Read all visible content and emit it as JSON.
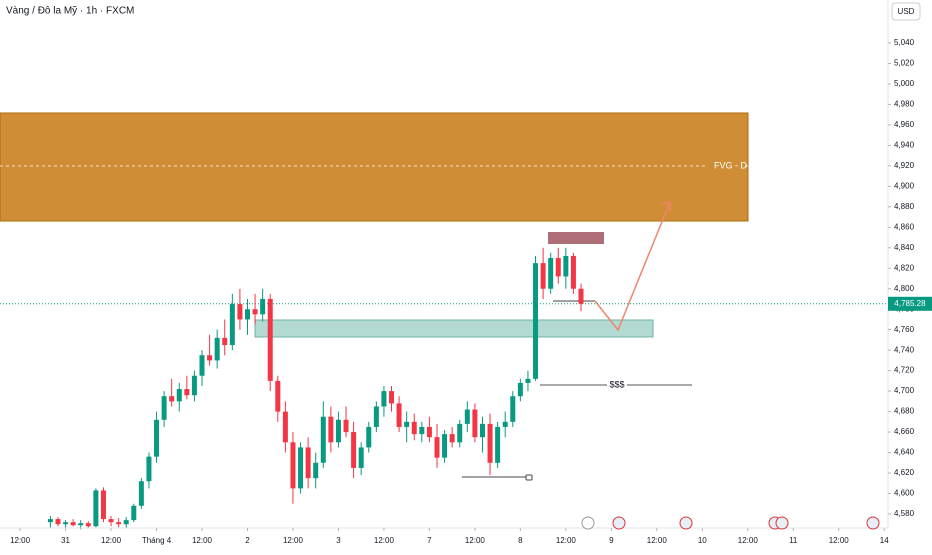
{
  "chart_data": {
    "type": "candlestick",
    "title": "Vàng / Đô la Mỹ · 1h · FXCM",
    "currency": "USD",
    "up_color": "#089981",
    "down_color": "#f23645",
    "ylim": [
      4566.3,
      5082
    ],
    "xlim": [
      -5.3,
      229
    ],
    "yticks": [
      {
        "value": 4580,
        "label": "4,580"
      },
      {
        "value": 4600,
        "label": "4,600"
      },
      {
        "value": 4620,
        "label": "4,620"
      },
      {
        "value": 4640,
        "label": "4,640"
      },
      {
        "value": 4660,
        "label": "4,660"
      },
      {
        "value": 4680,
        "label": "4,680"
      },
      {
        "value": 4700,
        "label": "4,700"
      },
      {
        "value": 4720,
        "label": "4,720"
      },
      {
        "value": 4740,
        "label": "4,740"
      },
      {
        "value": 4760,
        "label": "4,760"
      },
      {
        "value": 4780,
        "label": "4,780"
      },
      {
        "value": 4800,
        "label": "4,800"
      },
      {
        "value": 4820,
        "label": "4,820"
      },
      {
        "value": 4840,
        "label": "4,840"
      },
      {
        "value": 4860,
        "label": "4,860"
      },
      {
        "value": 4880,
        "label": "4,880"
      },
      {
        "value": 4900,
        "label": "4,900"
      },
      {
        "value": 4920,
        "label": "4,920"
      },
      {
        "value": 4940,
        "label": "4,940"
      },
      {
        "value": 4960,
        "label": "4,960"
      },
      {
        "value": 4980,
        "label": "4,980"
      },
      {
        "value": 5000,
        "label": "5,000"
      },
      {
        "value": 5020,
        "label": "5,020"
      },
      {
        "value": 5040,
        "label": "5,040"
      }
    ],
    "xticks": [
      {
        "value": 0,
        "label": "12:00"
      },
      {
        "value": 12,
        "label": "31"
      },
      {
        "value": 24,
        "label": "12:00"
      },
      {
        "value": 36,
        "label": "Tháng 4"
      },
      {
        "value": 48,
        "label": "12:00"
      },
      {
        "value": 60,
        "label": "2"
      },
      {
        "value": 72,
        "label": "12:00"
      },
      {
        "value": 84,
        "label": "3"
      },
      {
        "value": 96,
        "label": "12:00"
      },
      {
        "value": 108,
        "label": "7"
      },
      {
        "value": 120,
        "label": "12:00"
      },
      {
        "value": 132,
        "label": "8"
      },
      {
        "value": 144,
        "label": "12:00"
      },
      {
        "value": 156,
        "label": "9"
      },
      {
        "value": 168,
        "label": "12:00"
      },
      {
        "value": 180,
        "label": "10"
      },
      {
        "value": 192,
        "label": "12:00"
      },
      {
        "value": 204,
        "label": "11"
      },
      {
        "value": 216,
        "label": "12:00"
      },
      {
        "value": 228,
        "label": "14"
      }
    ],
    "last_price": {
      "value": 4785.28,
      "label": "4,785.28"
    },
    "annotations": {
      "fvg": "FVG - D",
      "liquidity": "$$$"
    },
    "candles": [
      [
        8,
        4572,
        4578,
        4566,
        4575
      ],
      [
        10,
        4575,
        4577,
        4568,
        4570
      ],
      [
        12,
        4570,
        4574,
        4566,
        4572
      ],
      [
        14,
        4572,
        4575,
        4568,
        4569
      ],
      [
        16,
        4569,
        4574,
        4565,
        4571
      ],
      [
        18,
        4571,
        4573,
        4566,
        4568
      ],
      [
        20,
        4568,
        4605,
        4567,
        4603
      ],
      [
        22,
        4603,
        4606,
        4572,
        4575
      ],
      [
        24,
        4575,
        4578,
        4568,
        4572
      ],
      [
        26,
        4572,
        4576,
        4567,
        4570
      ],
      [
        28,
        4570,
        4577,
        4566,
        4574
      ],
      [
        30,
        4574,
        4590,
        4572,
        4588
      ],
      [
        32,
        4588,
        4615,
        4585,
        4612
      ],
      [
        34,
        4612,
        4640,
        4605,
        4636
      ],
      [
        36,
        4636,
        4680,
        4630,
        4672
      ],
      [
        38,
        4672,
        4700,
        4665,
        4695
      ],
      [
        40,
        4695,
        4712,
        4685,
        4690
      ],
      [
        42,
        4690,
        4708,
        4680,
        4702
      ],
      [
        44,
        4702,
        4715,
        4692,
        4696
      ],
      [
        46,
        4696,
        4720,
        4690,
        4715
      ],
      [
        48,
        4715,
        4740,
        4705,
        4735
      ],
      [
        50,
        4735,
        4755,
        4725,
        4730
      ],
      [
        52,
        4730,
        4760,
        4722,
        4752
      ],
      [
        54,
        4752,
        4770,
        4735,
        4745
      ],
      [
        56,
        4745,
        4795,
        4740,
        4785
      ],
      [
        58,
        4785,
        4800,
        4760,
        4770
      ],
      [
        60,
        4770,
        4790,
        4755,
        4780
      ],
      [
        62,
        4780,
        4795,
        4765,
        4775
      ],
      [
        64,
        4775,
        4800,
        4768,
        4790
      ],
      [
        66,
        4790,
        4795,
        4700,
        4710
      ],
      [
        68,
        4710,
        4715,
        4670,
        4680
      ],
      [
        70,
        4680,
        4690,
        4640,
        4650
      ],
      [
        72,
        4650,
        4660,
        4590,
        4605
      ],
      [
        74,
        4605,
        4650,
        4600,
        4645
      ],
      [
        76,
        4645,
        4655,
        4605,
        4615
      ],
      [
        78,
        4615,
        4640,
        4605,
        4630
      ],
      [
        80,
        4630,
        4690,
        4625,
        4675
      ],
      [
        82,
        4675,
        4685,
        4640,
        4650
      ],
      [
        84,
        4650,
        4680,
        4645,
        4672
      ],
      [
        86,
        4672,
        4685,
        4655,
        4660
      ],
      [
        88,
        4660,
        4670,
        4615,
        4625
      ],
      [
        90,
        4625,
        4650,
        4618,
        4645
      ],
      [
        92,
        4645,
        4670,
        4640,
        4665
      ],
      [
        94,
        4665,
        4690,
        4660,
        4685
      ],
      [
        96,
        4685,
        4705,
        4675,
        4700
      ],
      [
        98,
        4700,
        4705,
        4680,
        4688
      ],
      [
        100,
        4688,
        4695,
        4660,
        4665
      ],
      [
        102,
        4665,
        4680,
        4650,
        4670
      ],
      [
        104,
        4670,
        4678,
        4652,
        4658
      ],
      [
        106,
        4658,
        4670,
        4650,
        4665
      ],
      [
        108,
        4665,
        4675,
        4650,
        4655
      ],
      [
        110,
        4655,
        4668,
        4625,
        4635
      ],
      [
        112,
        4635,
        4662,
        4630,
        4658
      ],
      [
        114,
        4658,
        4665,
        4645,
        4650
      ],
      [
        116,
        4650,
        4672,
        4645,
        4668
      ],
      [
        118,
        4668,
        4690,
        4660,
        4682
      ],
      [
        120,
        4682,
        4688,
        4650,
        4655
      ],
      [
        122,
        4655,
        4675,
        4640,
        4668
      ],
      [
        124,
        4668,
        4678,
        4618,
        4630
      ],
      [
        126,
        4630,
        4670,
        4625,
        4665
      ],
      [
        128,
        4665,
        4680,
        4655,
        4670
      ],
      [
        130,
        4670,
        4700,
        4665,
        4695
      ],
      [
        132,
        4695,
        4712,
        4690,
        4708
      ],
      [
        134,
        4708,
        4720,
        4700,
        4712
      ],
      [
        136,
        4712,
        4832,
        4710,
        4825
      ],
      [
        138,
        4825,
        4840,
        4790,
        4800
      ],
      [
        140,
        4800,
        4835,
        4795,
        4830
      ],
      [
        142,
        4830,
        4840,
        4805,
        4812
      ],
      [
        144,
        4812,
        4840,
        4800,
        4832
      ],
      [
        146,
        4832,
        4835,
        4795,
        4800
      ],
      [
        148,
        4800,
        4805,
        4778,
        4785.28
      ]
    ]
  }
}
